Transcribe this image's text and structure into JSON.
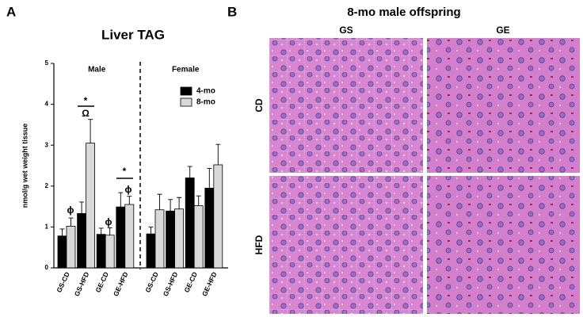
{
  "panel_labels": [
    "A",
    "B"
  ],
  "chart_data": {
    "type": "bar",
    "title": "Liver TAG",
    "ylabel": "nmol/g wet weight tissue",
    "groups": [
      "Male",
      "Female"
    ],
    "categories": [
      "GS-CD",
      "GS-HFD",
      "GE-CD",
      "GE-HFD",
      "GS-CD",
      "GS-HFD",
      "GE-CD",
      "GE-HFD"
    ],
    "series": [
      {
        "name": "4-mo",
        "color": "#000000",
        "values": [
          0.78,
          1.33,
          0.82,
          1.49,
          0.83,
          1.39,
          2.2,
          1.95
        ],
        "errors": [
          0.17,
          0.28,
          0.15,
          0.35,
          0.17,
          0.28,
          0.28,
          0.48
        ]
      },
      {
        "name": "8-mo",
        "color": "#d9d9d9",
        "values": [
          1.02,
          3.05,
          0.8,
          1.55,
          1.42,
          1.44,
          1.52,
          2.52
        ],
        "errors": [
          0.2,
          0.58,
          0.18,
          0.2,
          0.38,
          0.28,
          0.24,
          0.5
        ]
      }
    ],
    "ylim": [
      0,
      5
    ],
    "yticks": [
      0,
      1,
      2,
      3,
      4,
      5
    ],
    "annotations": [
      "ϕ",
      "*",
      "Ω",
      "ϕ",
      "*",
      "ϕ"
    ]
  },
  "micrographs": {
    "title": "8-mo male offspring",
    "columns": [
      "GS",
      "GE"
    ],
    "rows": [
      "CD",
      "HFD"
    ]
  }
}
